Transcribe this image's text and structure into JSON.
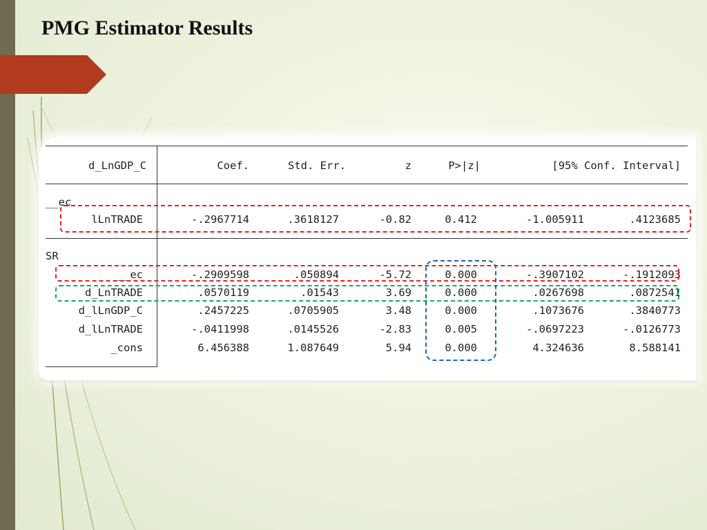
{
  "title": "PMG Estimator Results",
  "table": {
    "headers": {
      "depvar": "d_LnGDP_C",
      "coef": "Coef.",
      "stderr": "Std. Err.",
      "z": "z",
      "p": "P>|z|",
      "ci": "[95% Conf. Interval]"
    },
    "section_ec": "__ec",
    "section_sr": "SR",
    "ec_rows": [
      {
        "name": "lLnTRADE",
        "coef": "-.2967714",
        "se": ".3618127",
        "z": "-0.82",
        "p": "0.412",
        "lo": "-1.005911",
        "hi": ".4123685"
      }
    ],
    "sr_rows": [
      {
        "name": "__ec",
        "coef": "-.2909598",
        "se": ".050894",
        "z": "-5.72",
        "p": "0.000",
        "lo": "-.3907102",
        "hi": "-.1912093"
      },
      {
        "name": "d_LnTRADE",
        "coef": ".0570119",
        "se": ".01543",
        "z": "3.69",
        "p": "0.000",
        "lo": ".0267698",
        "hi": ".0872541"
      },
      {
        "name": "d_lLnGDP_C",
        "coef": ".2457225",
        "se": ".0705905",
        "z": "3.48",
        "p": "0.000",
        "lo": ".1073676",
        "hi": ".3840773"
      },
      {
        "name": "d_lLnTRADE",
        "coef": "-.0411998",
        "se": ".0145526",
        "z": "-2.83",
        "p": "0.005",
        "lo": "-.0697223",
        "hi": "-.0126773"
      },
      {
        "name": "_cons",
        "coef": "6.456388",
        "se": "1.087649",
        "z": "5.94",
        "p": "0.000",
        "lo": "4.324636",
        "hi": "8.588141"
      }
    ]
  },
  "colors": {
    "sidebar": "#6f6a50",
    "tab": "#b23a1e",
    "highlight_red": "#e52020",
    "highlight_green": "#17a854",
    "highlight_blue": "#1466b0"
  }
}
